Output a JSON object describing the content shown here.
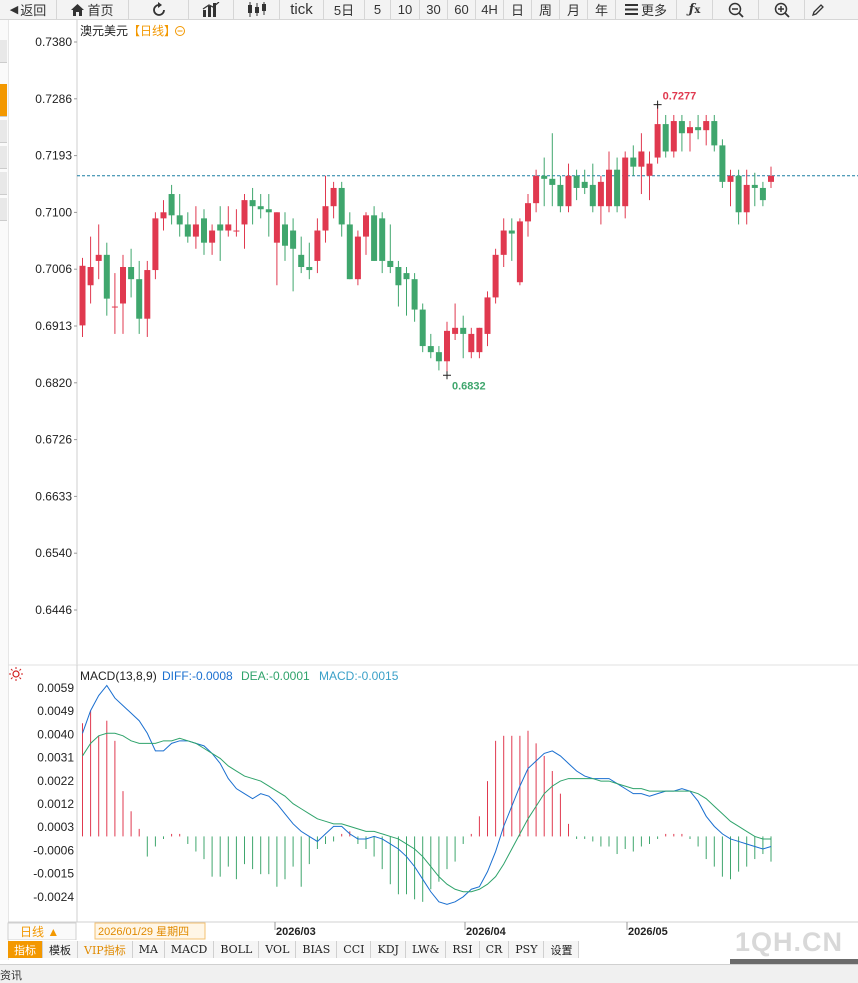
{
  "toolbar": {
    "back": "返回",
    "home": "首页",
    "tick": "tick",
    "periods": [
      "5日",
      "5",
      "10",
      "30",
      "60",
      "4H",
      "日",
      "周",
      "月",
      "年"
    ],
    "more": "更多"
  },
  "chart": {
    "title": "澳元美元",
    "period_tag": "【日线】",
    "price_ticks": [
      "0.7380",
      "0.7286",
      "0.7193",
      "0.7100",
      "0.7006",
      "0.6913",
      "0.6820",
      "0.6726",
      "0.6633",
      "0.6540",
      "0.6446"
    ],
    "high_label": "0.7277",
    "low_label": "0.6832",
    "macd_ticks": [
      "0.0059",
      "0.0049",
      "0.0040",
      "0.0031",
      "0.0022",
      "0.0012",
      "0.0003",
      "-0.0006",
      "-0.0015",
      "-0.0024"
    ],
    "macd_title": "MACD(13,8,9)",
    "macd_diff": "DIFF:-0.0008",
    "macd_dea": "DEA:-0.0001",
    "macd_val": "MACD:-0.0015",
    "period_btn": "日线 ▲",
    "cursor_date": "2026/01/29 星期四",
    "x_labels": [
      "2026/03",
      "2026/04",
      "2026/05"
    ],
    "colors": {
      "up": "#e0394f",
      "down": "#3fa66d",
      "diff": "#1a6fd0",
      "dea": "#2fa36b",
      "last_price_line": "#1a7fa3"
    }
  },
  "chart_data": {
    "type": "candlestick",
    "title": "澳元美元",
    "ylim": [
      0.64,
      0.74
    ],
    "candles": [
      {
        "o": 0.6914,
        "h": 0.7025,
        "l": 0.6895,
        "c": 0.7012
      },
      {
        "o": 0.698,
        "h": 0.706,
        "l": 0.695,
        "c": 0.701
      },
      {
        "o": 0.702,
        "h": 0.708,
        "l": 0.699,
        "c": 0.703
      },
      {
        "o": 0.703,
        "h": 0.705,
        "l": 0.693,
        "c": 0.6958
      },
      {
        "o": 0.6945,
        "h": 0.7,
        "l": 0.69,
        "c": 0.6945
      },
      {
        "o": 0.695,
        "h": 0.703,
        "l": 0.69,
        "c": 0.701
      },
      {
        "o": 0.701,
        "h": 0.704,
        "l": 0.696,
        "c": 0.699
      },
      {
        "o": 0.699,
        "h": 0.702,
        "l": 0.69,
        "c": 0.6925
      },
      {
        "o": 0.6925,
        "h": 0.702,
        "l": 0.6895,
        "c": 0.7005
      },
      {
        "o": 0.7005,
        "h": 0.71,
        "l": 0.699,
        "c": 0.709
      },
      {
        "o": 0.709,
        "h": 0.712,
        "l": 0.707,
        "c": 0.71
      },
      {
        "o": 0.713,
        "h": 0.7145,
        "l": 0.708,
        "c": 0.7095
      },
      {
        "o": 0.7095,
        "h": 0.713,
        "l": 0.706,
        "c": 0.708
      },
      {
        "o": 0.708,
        "h": 0.71,
        "l": 0.705,
        "c": 0.706
      },
      {
        "o": 0.706,
        "h": 0.711,
        "l": 0.704,
        "c": 0.708
      },
      {
        "o": 0.709,
        "h": 0.7105,
        "l": 0.703,
        "c": 0.705
      },
      {
        "o": 0.705,
        "h": 0.708,
        "l": 0.703,
        "c": 0.707
      },
      {
        "o": 0.708,
        "h": 0.711,
        "l": 0.702,
        "c": 0.707
      },
      {
        "o": 0.707,
        "h": 0.711,
        "l": 0.706,
        "c": 0.708
      },
      {
        "o": 0.707,
        "h": 0.7105,
        "l": 0.706,
        "c": 0.707
      },
      {
        "o": 0.708,
        "h": 0.713,
        "l": 0.704,
        "c": 0.712
      },
      {
        "o": 0.712,
        "h": 0.714,
        "l": 0.708,
        "c": 0.711
      },
      {
        "o": 0.711,
        "h": 0.713,
        "l": 0.709,
        "c": 0.7105
      },
      {
        "o": 0.7105,
        "h": 0.713,
        "l": 0.706,
        "c": 0.71
      },
      {
        "o": 0.705,
        "h": 0.71,
        "l": 0.698,
        "c": 0.71
      },
      {
        "o": 0.708,
        "h": 0.71,
        "l": 0.702,
        "c": 0.7045
      },
      {
        "o": 0.707,
        "h": 0.709,
        "l": 0.697,
        "c": 0.704
      },
      {
        "o": 0.703,
        "h": 0.706,
        "l": 0.7,
        "c": 0.701
      },
      {
        "o": 0.701,
        "h": 0.705,
        "l": 0.699,
        "c": 0.7005
      },
      {
        "o": 0.702,
        "h": 0.709,
        "l": 0.7,
        "c": 0.707
      },
      {
        "o": 0.707,
        "h": 0.716,
        "l": 0.705,
        "c": 0.711
      },
      {
        "o": 0.711,
        "h": 0.715,
        "l": 0.709,
        "c": 0.714
      },
      {
        "o": 0.714,
        "h": 0.715,
        "l": 0.706,
        "c": 0.708
      },
      {
        "o": 0.708,
        "h": 0.71,
        "l": 0.699,
        "c": 0.699
      },
      {
        "o": 0.699,
        "h": 0.707,
        "l": 0.698,
        "c": 0.706
      },
      {
        "o": 0.706,
        "h": 0.71,
        "l": 0.703,
        "c": 0.7095
      },
      {
        "o": 0.7095,
        "h": 0.711,
        "l": 0.702,
        "c": 0.702
      },
      {
        "o": 0.709,
        "h": 0.71,
        "l": 0.7,
        "c": 0.702
      },
      {
        "o": 0.702,
        "h": 0.708,
        "l": 0.7,
        "c": 0.701
      },
      {
        "o": 0.701,
        "h": 0.702,
        "l": 0.6945,
        "c": 0.698
      },
      {
        "o": 0.7,
        "h": 0.701,
        "l": 0.693,
        "c": 0.699
      },
      {
        "o": 0.699,
        "h": 0.7,
        "l": 0.692,
        "c": 0.694
      },
      {
        "o": 0.694,
        "h": 0.695,
        "l": 0.687,
        "c": 0.688
      },
      {
        "o": 0.688,
        "h": 0.69,
        "l": 0.686,
        "c": 0.687
      },
      {
        "o": 0.687,
        "h": 0.688,
        "l": 0.684,
        "c": 0.6855
      },
      {
        "o": 0.6855,
        "h": 0.692,
        "l": 0.6832,
        "c": 0.6905
      },
      {
        "o": 0.69,
        "h": 0.695,
        "l": 0.689,
        "c": 0.691
      },
      {
        "o": 0.691,
        "h": 0.693,
        "l": 0.686,
        "c": 0.69
      },
      {
        "o": 0.687,
        "h": 0.691,
        "l": 0.686,
        "c": 0.69
      },
      {
        "o": 0.687,
        "h": 0.691,
        "l": 0.686,
        "c": 0.691
      },
      {
        "o": 0.69,
        "h": 0.697,
        "l": 0.688,
        "c": 0.696
      },
      {
        "o": 0.696,
        "h": 0.704,
        "l": 0.695,
        "c": 0.703
      },
      {
        "o": 0.703,
        "h": 0.709,
        "l": 0.701,
        "c": 0.707
      },
      {
        "o": 0.707,
        "h": 0.709,
        "l": 0.702,
        "c": 0.7065
      },
      {
        "o": 0.6985,
        "h": 0.709,
        "l": 0.698,
        "c": 0.7085
      },
      {
        "o": 0.7085,
        "h": 0.713,
        "l": 0.706,
        "c": 0.7115
      },
      {
        "o": 0.7115,
        "h": 0.717,
        "l": 0.71,
        "c": 0.716
      },
      {
        "o": 0.716,
        "h": 0.719,
        "l": 0.711,
        "c": 0.7155
      },
      {
        "o": 0.7155,
        "h": 0.723,
        "l": 0.711,
        "c": 0.7145
      },
      {
        "o": 0.7145,
        "h": 0.716,
        "l": 0.71,
        "c": 0.711
      },
      {
        "o": 0.711,
        "h": 0.718,
        "l": 0.71,
        "c": 0.716
      },
      {
        "o": 0.716,
        "h": 0.717,
        "l": 0.712,
        "c": 0.714
      },
      {
        "o": 0.715,
        "h": 0.717,
        "l": 0.713,
        "c": 0.714
      },
      {
        "o": 0.7145,
        "h": 0.718,
        "l": 0.71,
        "c": 0.711
      },
      {
        "o": 0.711,
        "h": 0.716,
        "l": 0.708,
        "c": 0.715
      },
      {
        "o": 0.711,
        "h": 0.72,
        "l": 0.71,
        "c": 0.717
      },
      {
        "o": 0.717,
        "h": 0.719,
        "l": 0.71,
        "c": 0.711
      },
      {
        "o": 0.711,
        "h": 0.72,
        "l": 0.709,
        "c": 0.719
      },
      {
        "o": 0.719,
        "h": 0.721,
        "l": 0.716,
        "c": 0.7175
      },
      {
        "o": 0.7175,
        "h": 0.723,
        "l": 0.713,
        "c": 0.72
      },
      {
        "o": 0.716,
        "h": 0.72,
        "l": 0.712,
        "c": 0.718
      },
      {
        "o": 0.719,
        "h": 0.7277,
        "l": 0.718,
        "c": 0.7245
      },
      {
        "o": 0.7245,
        "h": 0.726,
        "l": 0.719,
        "c": 0.72
      },
      {
        "o": 0.72,
        "h": 0.726,
        "l": 0.719,
        "c": 0.725
      },
      {
        "o": 0.725,
        "h": 0.726,
        "l": 0.72,
        "c": 0.723
      },
      {
        "o": 0.723,
        "h": 0.725,
        "l": 0.72,
        "c": 0.724
      },
      {
        "o": 0.724,
        "h": 0.726,
        "l": 0.722,
        "c": 0.7235
      },
      {
        "o": 0.7235,
        "h": 0.726,
        "l": 0.721,
        "c": 0.725
      },
      {
        "o": 0.725,
        "h": 0.726,
        "l": 0.72,
        "c": 0.721
      },
      {
        "o": 0.721,
        "h": 0.722,
        "l": 0.714,
        "c": 0.715
      },
      {
        "o": 0.715,
        "h": 0.717,
        "l": 0.711,
        "c": 0.716
      },
      {
        "o": 0.716,
        "h": 0.717,
        "l": 0.708,
        "c": 0.71
      },
      {
        "o": 0.71,
        "h": 0.717,
        "l": 0.708,
        "c": 0.7145
      },
      {
        "o": 0.7145,
        "h": 0.7165,
        "l": 0.711,
        "c": 0.714
      },
      {
        "o": 0.714,
        "h": 0.715,
        "l": 0.711,
        "c": 0.712
      },
      {
        "o": 0.715,
        "h": 0.7175,
        "l": 0.714,
        "c": 0.716
      }
    ],
    "last_price": 0.716,
    "macd_ylim": [
      -0.0032,
      0.0064
    ],
    "macd_hist": [
      0.0045,
      0.005,
      0.004,
      0.0046,
      0.0038,
      0.0018,
      0.001,
      0.0003,
      -0.0008,
      -0.0004,
      -0.0001,
      0.0001,
      0.0001,
      -0.0003,
      -0.0006,
      -0.0009,
      -0.0016,
      -0.0016,
      -0.0012,
      -0.0017,
      -0.0011,
      -0.0013,
      -0.0015,
      -0.0015,
      -0.002,
      -0.0017,
      -0.0012,
      -0.002,
      -0.0011,
      -0.0005,
      -0.0003,
      -0.0002,
      0.0001,
      0.0002,
      -0.0003,
      -0.0005,
      -0.0008,
      -0.0013,
      -0.0019,
      -0.0023,
      -0.0023,
      -0.0025,
      -0.0026,
      -0.0021,
      -0.0018,
      -0.0013,
      -0.001,
      -0.0003,
      0.0001,
      0.0008,
      0.0022,
      0.0038,
      0.004,
      0.004,
      0.004,
      0.0042,
      0.0037,
      0.0032,
      0.0026,
      0.0017,
      0.0005,
      -0.0001,
      -0.0001,
      -0.0002,
      -0.0004,
      -0.0004,
      -0.0007,
      -0.0005,
      -0.0006,
      -0.0004,
      -0.0003,
      -0.0001,
      0.0001,
      0.0001,
      0.0001,
      -0.0001,
      -0.0004,
      -0.0009,
      -0.0012,
      -0.0016,
      -0.0017,
      -0.0014,
      -0.0012,
      -0.0009,
      -0.0007,
      -0.001
    ],
    "macd_diff": [
      0.0041,
      0.005,
      0.0056,
      0.006,
      0.0055,
      0.0052,
      0.0049,
      0.0046,
      0.0041,
      0.0034,
      0.0034,
      0.0037,
      0.0038,
      0.0038,
      0.0037,
      0.0036,
      0.0033,
      0.0029,
      0.0023,
      0.0019,
      0.0017,
      0.0015,
      0.0017,
      0.0016,
      0.0013,
      0.0009,
      0.0005,
      0.0002,
      0.0,
      -0.0002,
      0.0001,
      0.0004,
      0.0004,
      0.0001,
      -0.0001,
      -0.0001,
      0.0,
      -0.0001,
      -0.0003,
      -0.0005,
      -0.0008,
      -0.0012,
      -0.0017,
      -0.0022,
      -0.0026,
      -0.0027,
      -0.0026,
      -0.0024,
      -0.0021,
      -0.002,
      -0.0014,
      -0.0006,
      0.0004,
      0.0012,
      0.002,
      0.0027,
      0.003,
      0.0033,
      0.0034,
      0.0032,
      0.0029,
      0.0026,
      0.0024,
      0.0023,
      0.0023,
      0.0023,
      0.0021,
      0.0019,
      0.0017,
      0.0017,
      0.0016,
      0.0017,
      0.0018,
      0.0018,
      0.0019,
      0.0018,
      0.0014,
      0.0008,
      0.0004,
      0.0001,
      -0.0001,
      -0.0002,
      -0.0003,
      -0.0004,
      -0.0005,
      -0.0004
    ],
    "macd_dea": [
      0.0032,
      0.0037,
      0.004,
      0.0041,
      0.0041,
      0.004,
      0.0038,
      0.0037,
      0.0037,
      0.0037,
      0.0038,
      0.0038,
      0.0039,
      0.0038,
      0.0037,
      0.0035,
      0.0033,
      0.0031,
      0.0028,
      0.0026,
      0.0024,
      0.0023,
      0.0022,
      0.002,
      0.0018,
      0.0016,
      0.0013,
      0.0011,
      0.0009,
      0.0007,
      0.0006,
      0.0005,
      0.0005,
      0.0004,
      0.0003,
      0.0002,
      0.0002,
      0.0001,
      0.0,
      -0.0001,
      -0.0003,
      -0.0005,
      -0.0008,
      -0.0012,
      -0.0016,
      -0.0019,
      -0.0021,
      -0.0022,
      -0.0022,
      -0.0021,
      -0.0019,
      -0.0016,
      -0.0011,
      -0.0005,
      0.0001,
      0.0007,
      0.0012,
      0.0017,
      0.002,
      0.0022,
      0.0023,
      0.0023,
      0.0023,
      0.0023,
      0.0022,
      0.0022,
      0.0021,
      0.002,
      0.0019,
      0.0019,
      0.0018,
      0.0018,
      0.0018,
      0.0018,
      0.0018,
      0.0018,
      0.0017,
      0.0015,
      0.0012,
      0.0009,
      0.0006,
      0.0004,
      0.0002,
      0.0,
      -0.0001,
      -0.0001
    ]
  },
  "tabs": [
    "指标",
    "模板",
    "VIP指标",
    "MA",
    "MACD",
    "BOLL",
    "VOL",
    "BIAS",
    "CCI",
    "KDJ",
    "LW&",
    "RSI",
    "CR",
    "PSY",
    "设置"
  ],
  "bottom": {
    "news": "资讯",
    "watermark": "1QH.CN"
  }
}
